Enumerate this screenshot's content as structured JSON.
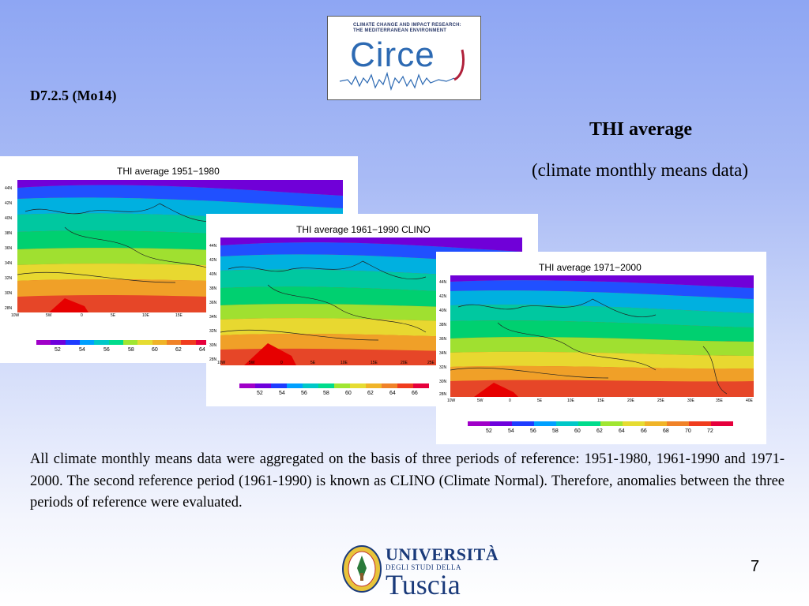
{
  "header": {
    "deliverable_code": "D7.2.5 (Mo14)",
    "title": "THI average",
    "subtitle": "(climate monthly means data)"
  },
  "circe_logo": {
    "tagline_line1": "CLIMATE CHANGE AND IMPACT RESEARCH:",
    "tagline_line2": "THE MEDITERRANEAN ENVIRONMENT",
    "wordmark": "Circe"
  },
  "maps": [
    {
      "title": "THI average 1951−1980",
      "lat_labels": [
        "44N",
        "42N",
        "40N",
        "38N",
        "36N",
        "34N",
        "32N",
        "30N",
        "28N"
      ],
      "lon_labels": [
        "10W",
        "5W",
        "0",
        "5E",
        "10E",
        "15E"
      ],
      "colorbar_labels": [
        "52",
        "54",
        "56",
        "58",
        "60",
        "62",
        "64"
      ]
    },
    {
      "title": "THI average 1961−1990 CLINO",
      "lat_labels": [
        "44N",
        "42N",
        "40N",
        "38N",
        "36N",
        "34N",
        "32N",
        "30N",
        "28N"
      ],
      "lon_labels": [
        "10W",
        "5W",
        "0",
        "5E",
        "10E",
        "15E",
        "20E",
        "25E"
      ],
      "colorbar_labels": [
        "52",
        "54",
        "56",
        "58",
        "60",
        "62",
        "64",
        "66"
      ]
    },
    {
      "title": "THI average 1971−2000",
      "lat_labels": [
        "44N",
        "42N",
        "40N",
        "38N",
        "36N",
        "34N",
        "32N",
        "30N",
        "28N"
      ],
      "lon_labels": [
        "10W",
        "5W",
        "0",
        "5E",
        "10E",
        "15E",
        "20E",
        "25E",
        "30E",
        "35E",
        "40E"
      ],
      "colorbar_labels": [
        "52",
        "54",
        "56",
        "58",
        "60",
        "62",
        "64",
        "66",
        "68",
        "70",
        "72"
      ]
    }
  ],
  "colors": {
    "colorbar": [
      "#a000c8",
      "#6e00dc",
      "#1e3cff",
      "#00a0ff",
      "#00c8c8",
      "#00dc8c",
      "#a0e632",
      "#e6dc32",
      "#f0b428",
      "#f08228",
      "#f03c1e",
      "#e6003c"
    ]
  },
  "body_text": "All climate monthly means data were aggregated on the basis of three periods of reference: 1951-1980, 1961-1990 and 1971-2000. The second reference period (1961-1990) is known as CLINO (Climate Normal). Therefore, anomalies between the three periods of reference were evaluated.",
  "university_logo": {
    "line1": "UNIVERSITÀ",
    "line2": "DEGLI STUDI DELLA",
    "line3": "Tuscia"
  },
  "page_number": "7"
}
